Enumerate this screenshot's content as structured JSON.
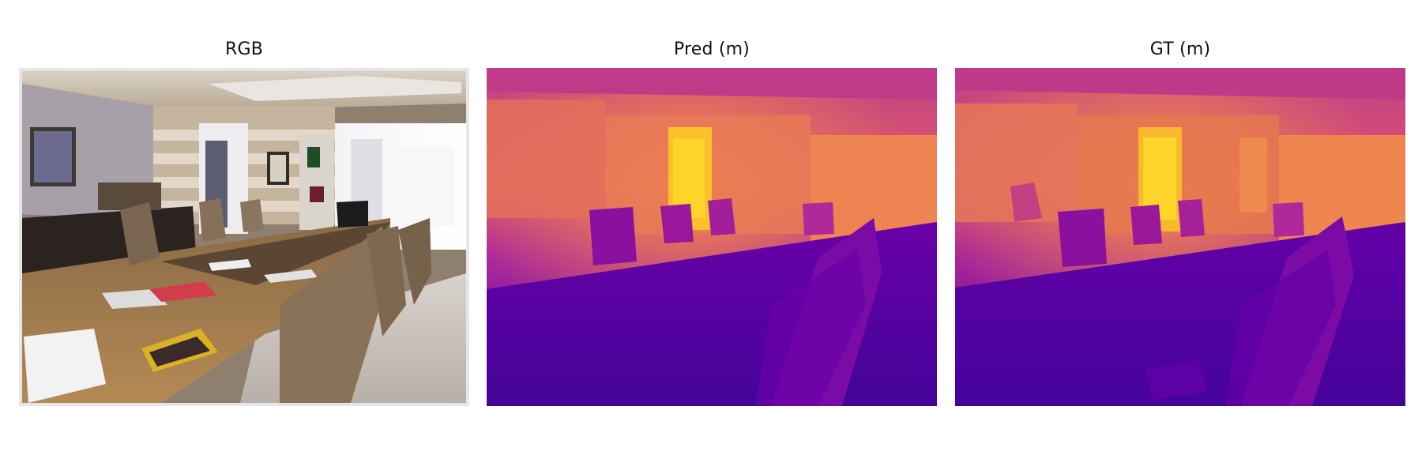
{
  "figure": {
    "panels": [
      {
        "title": "RGB",
        "content": "rgb-photo"
      },
      {
        "title": "Pred (m)",
        "content": "depth-prediction"
      },
      {
        "title": "GT (m)",
        "content": "depth-ground-truth"
      }
    ]
  },
  "colors": {
    "plasma_dark": "#3a049a",
    "plasma_mid": "#9a179b",
    "plasma_pink": "#cc4778",
    "plasma_orange": "#ed7953",
    "plasma_yellow": "#fdca26",
    "wood": "#a77f4f",
    "wall": "#c9b9a4"
  }
}
